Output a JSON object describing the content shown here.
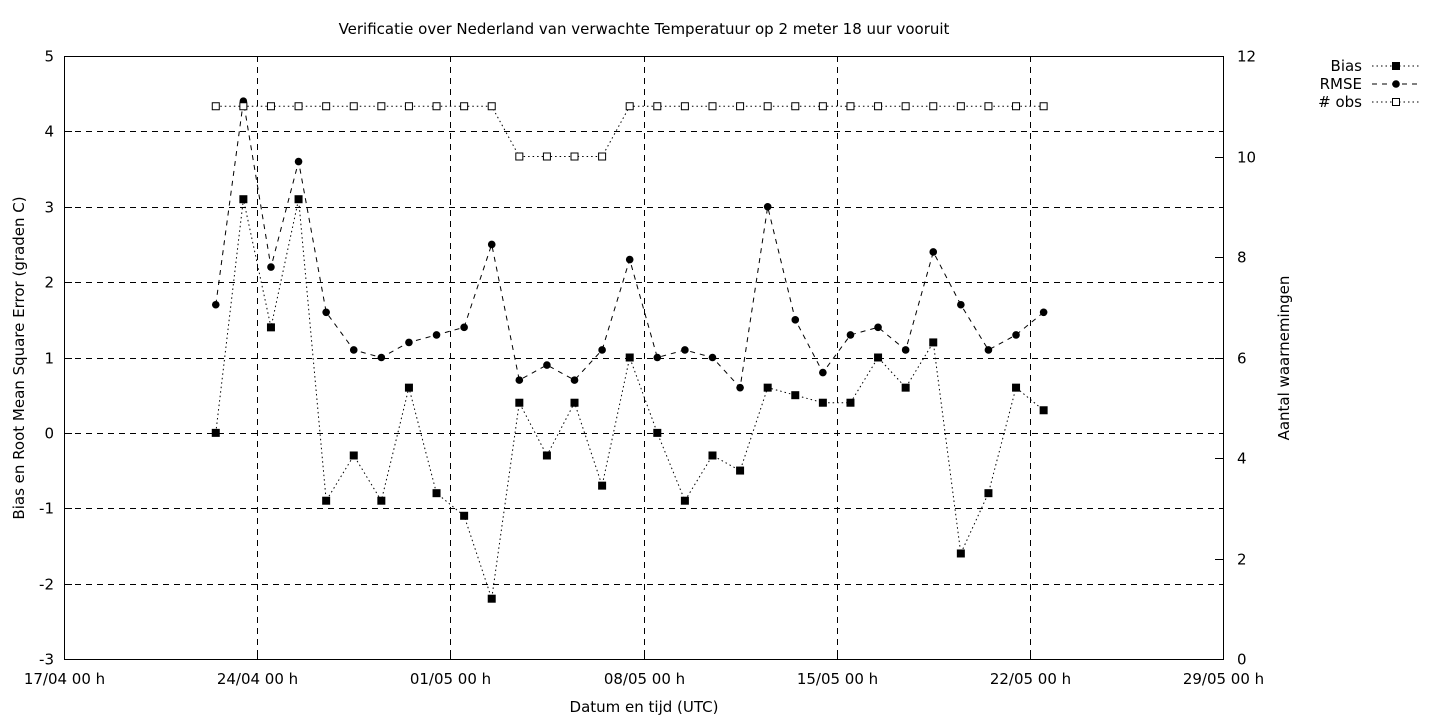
{
  "chart_data": {
    "type": "line",
    "title": "Verificatie over Nederland van verwachte Temperatuur op 2 meter 18 uur vooruit",
    "xlabel": "Datum en tijd (UTC)",
    "ylabel": "Bias en Root Mean Square Error (graden C)",
    "y2label": "Aantal waarnemingen",
    "x_tick_labels": [
      "17/04 00 h",
      "24/04 00 h",
      "01/05 00 h",
      "08/05 00 h",
      "15/05 00 h",
      "22/05 00 h",
      "29/05 00 h"
    ],
    "x_ticks_days": [
      0,
      7,
      14,
      21,
      28,
      35,
      42
    ],
    "ylim": [
      -3,
      5
    ],
    "y_ticks": [
      -3,
      -2,
      -1,
      0,
      1,
      2,
      3,
      4,
      5
    ],
    "y2lim": [
      0,
      12
    ],
    "y2_ticks": [
      0,
      2,
      4,
      6,
      8,
      10,
      12
    ],
    "grid": true,
    "legend_position": "top-right-outside",
    "x_days": [
      5.5,
      6.5,
      7.5,
      8.5,
      9.5,
      10.5,
      11.5,
      12.5,
      13.5,
      14.5,
      15.5,
      16.5,
      17.5,
      18.5,
      19.5,
      20.5,
      21.5,
      22.5,
      23.5,
      24.5,
      25.5,
      26.5,
      27.5,
      28.5,
      29.5,
      30.5,
      31.5,
      32.5,
      33.5,
      34.5,
      35.5
    ],
    "series": [
      {
        "name": "Bias",
        "axis": "y1",
        "style": "dotted",
        "marker": "filled-square",
        "values": [
          0,
          3.1,
          1.4,
          3.1,
          -0.9,
          -0.3,
          -0.9,
          0.6,
          -0.8,
          -1.1,
          -2.2,
          0.4,
          -0.3,
          0.4,
          -0.7,
          1.0,
          0,
          -0.9,
          -0.3,
          -0.5,
          0.6,
          0.5,
          0.4,
          0.4,
          1.0,
          0.6,
          1.2,
          -1.6,
          -0.8,
          0.6,
          0.3
        ]
      },
      {
        "name": "RMSE",
        "axis": "y1",
        "style": "dashed",
        "marker": "filled-circle",
        "values": [
          1.7,
          4.4,
          2.2,
          3.6,
          1.6,
          1.1,
          1.0,
          1.2,
          1.3,
          1.4,
          2.5,
          0.7,
          0.9,
          0.7,
          1.1,
          2.3,
          1.0,
          1.1,
          1.0,
          0.6,
          3.0,
          1.5,
          0.8,
          1.3,
          1.4,
          1.1,
          2.4,
          1.7,
          1.1,
          1.3,
          1.6
        ]
      },
      {
        "name": "# obs",
        "axis": "y2",
        "style": "dotted",
        "marker": "open-square",
        "values": [
          11,
          11,
          11,
          11,
          11,
          11,
          11,
          11,
          11,
          11,
          11,
          10,
          10,
          10,
          10,
          11,
          11,
          11,
          11,
          11,
          11,
          11,
          11,
          11,
          11,
          11,
          11,
          11,
          11,
          11,
          11
        ]
      }
    ]
  }
}
